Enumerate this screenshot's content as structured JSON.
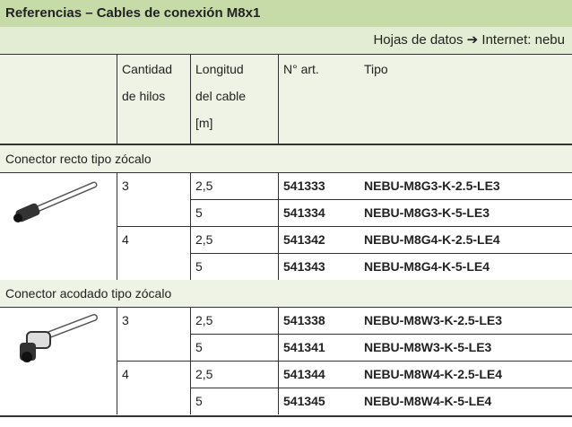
{
  "header": {
    "title": "Referencias – Cables de conexión M8x1",
    "subtitle": "Hojas de datos ➔ Internet: nebu"
  },
  "table": {
    "columns": [
      [
        "Cantidad",
        "de hilos"
      ],
      [
        "Longitud",
        "del cable",
        "[m]"
      ],
      [
        "N° art."
      ],
      [
        "Tipo"
      ]
    ],
    "sections": [
      {
        "title": "Conector recto tipo zócalo",
        "groups": [
          {
            "wires": "3",
            "rows": [
              {
                "length": "2,5",
                "art": "541333",
                "type": "NEBU-M8G3-K-2.5-LE3"
              },
              {
                "length": "5",
                "art": "541334",
                "type": "NEBU-M8G3-K-5-LE3"
              }
            ]
          },
          {
            "wires": "4",
            "rows": [
              {
                "length": "2,5",
                "art": "541342",
                "type": "NEBU-M8G4-K-2.5-LE4"
              },
              {
                "length": "5",
                "art": "541343",
                "type": "NEBU-M8G4-K-5-LE4"
              }
            ]
          }
        ]
      },
      {
        "title": "Conector acodado tipo zócalo",
        "groups": [
          {
            "wires": "3",
            "rows": [
              {
                "length": "2,5",
                "art": "541338",
                "type": "NEBU-M8W3-K-2.5-LE3"
              },
              {
                "length": "5",
                "art": "541341",
                "type": "NEBU-M8W3-K-5-LE3"
              }
            ]
          },
          {
            "wires": "4",
            "rows": [
              {
                "length": "2,5",
                "art": "541344",
                "type": "NEBU-M8W4-K-2.5-LE4"
              },
              {
                "length": "5",
                "art": "541345",
                "type": "NEBU-M8W4-K-5-LE4"
              }
            ]
          }
        ]
      }
    ]
  }
}
